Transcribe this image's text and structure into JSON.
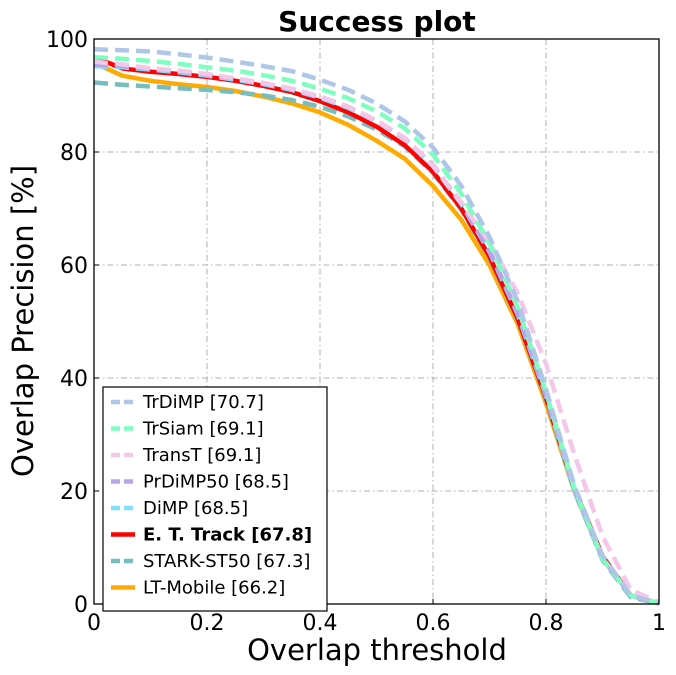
{
  "chart_data": {
    "type": "line",
    "title": "Success plot",
    "xlabel": "Overlap threshold",
    "ylabel": "Overlap Precision [%]",
    "xlim": [
      0,
      1
    ],
    "ylim": [
      0,
      100
    ],
    "xticks": [
      0,
      0.2,
      0.4,
      0.6,
      0.8,
      1
    ],
    "xtick_labels": [
      "0",
      "0.2",
      "0.4",
      "0.6",
      "0.8",
      "1"
    ],
    "yticks": [
      0,
      20,
      40,
      60,
      80,
      100
    ],
    "ytick_labels": [
      "0",
      "20",
      "40",
      "60",
      "80",
      "100"
    ],
    "grid": true,
    "legend_position": "lower-left",
    "x": [
      0,
      0.05,
      0.1,
      0.15,
      0.2,
      0.25,
      0.3,
      0.35,
      0.4,
      0.45,
      0.5,
      0.55,
      0.6,
      0.65,
      0.7,
      0.75,
      0.8,
      0.85,
      0.9,
      0.95,
      1.0
    ],
    "series": [
      {
        "name": "TrDiMP [70.7]",
        "color": "#aec7e8",
        "dashed": true,
        "bold": false,
        "values": [
          98.2,
          98.0,
          97.8,
          97.3,
          96.7,
          96.0,
          95.2,
          94.3,
          92.8,
          91.0,
          88.6,
          85.4,
          80.8,
          74.0,
          65.0,
          53.5,
          38.0,
          21.0,
          8.5,
          1.5,
          0.2
        ]
      },
      {
        "name": "TrSiam [69.1]",
        "color": "#7fffbf",
        "dashed": true,
        "bold": false,
        "values": [
          96.8,
          96.5,
          96.1,
          95.6,
          95.0,
          94.4,
          93.6,
          92.6,
          91.2,
          89.5,
          87.2,
          84.2,
          79.5,
          72.6,
          63.8,
          52.5,
          37.5,
          20.5,
          8.0,
          1.5,
          0.1
        ]
      },
      {
        "name": "TransT [69.1]",
        "color": "#f4c6e8",
        "dashed": true,
        "bold": false,
        "values": [
          96.0,
          95.5,
          94.8,
          94.4,
          93.8,
          93.0,
          92.2,
          91.2,
          89.8,
          88.0,
          85.6,
          82.5,
          77.6,
          71.0,
          64.0,
          55.0,
          42.5,
          26.5,
          12.0,
          2.5,
          0.3
        ]
      },
      {
        "name": "PrDiMP50 [68.5]",
        "color": "#b3a5e8",
        "dashed": true,
        "bold": false,
        "values": [
          95.5,
          95.2,
          94.8,
          94.3,
          93.7,
          93.0,
          92.2,
          91.2,
          89.8,
          88.0,
          85.6,
          82.4,
          77.7,
          71.0,
          62.5,
          51.5,
          37.0,
          20.5,
          8.2,
          1.5,
          0.1
        ]
      },
      {
        "name": "DiMP [68.5]",
        "color": "#80deff",
        "dashed": true,
        "bold": false,
        "values": [
          95.2,
          95.0,
          94.6,
          94.1,
          93.5,
          92.8,
          92.0,
          91.0,
          89.6,
          87.8,
          85.5,
          82.3,
          77.5,
          70.8,
          62.3,
          51.2,
          36.8,
          20.2,
          8.0,
          1.5,
          0.1
        ]
      },
      {
        "name": "E. T. Track [67.8]",
        "color": "#ff0000",
        "dashed": false,
        "bold": true,
        "values": [
          96.8,
          94.8,
          94.2,
          93.8,
          93.3,
          92.6,
          91.7,
          90.6,
          89.0,
          87.0,
          84.5,
          81.2,
          76.5,
          70.0,
          61.5,
          50.5,
          36.5,
          20.5,
          8.5,
          1.5,
          0.1
        ]
      },
      {
        "name": "STARK-ST50 [67.3]",
        "color": "#76bdbd",
        "dashed": true,
        "bold": false,
        "values": [
          92.3,
          91.9,
          91.6,
          91.3,
          91.0,
          90.6,
          90.0,
          89.2,
          88.0,
          86.3,
          84.0,
          81.0,
          76.3,
          69.8,
          61.2,
          50.2,
          36.2,
          20.0,
          7.8,
          1.2,
          0.1
        ]
      },
      {
        "name": "LT-Mobile [66.2]",
        "color": "#ffaa00",
        "dashed": false,
        "bold": false,
        "values": [
          95.8,
          93.5,
          92.6,
          92.0,
          91.5,
          90.8,
          89.8,
          88.6,
          87.0,
          84.8,
          82.0,
          78.8,
          74.0,
          68.0,
          60.0,
          49.5,
          35.5,
          20.0,
          8.0,
          1.5,
          0.1
        ]
      }
    ]
  }
}
